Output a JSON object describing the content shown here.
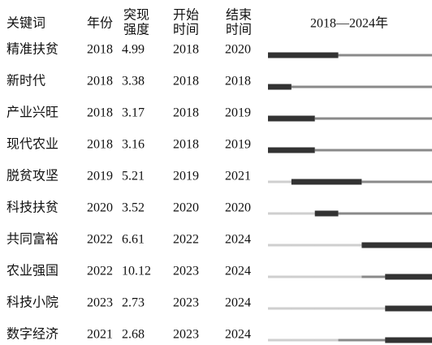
{
  "header": {
    "keyword": "关键词",
    "year": "年份",
    "strength": [
      "突现",
      "强度"
    ],
    "begin": [
      "开始",
      "时间"
    ],
    "end": [
      "结束",
      "时间"
    ],
    "timeline": "2018—2024年"
  },
  "rows": [
    {
      "keyword": "精准扶贫",
      "year": 2018,
      "strength": 4.99,
      "begin": 2018,
      "end": 2020
    },
    {
      "keyword": "新时代",
      "year": 2018,
      "strength": 3.38,
      "begin": 2018,
      "end": 2018
    },
    {
      "keyword": "产业兴旺",
      "year": 2018,
      "strength": 3.17,
      "begin": 2018,
      "end": 2019
    },
    {
      "keyword": "现代农业",
      "year": 2018,
      "strength": 3.16,
      "begin": 2018,
      "end": 2019
    },
    {
      "keyword": "脱贫攻坚",
      "year": 2019,
      "strength": 5.21,
      "begin": 2019,
      "end": 2021
    },
    {
      "keyword": "科技扶贫",
      "year": 2020,
      "strength": 3.52,
      "begin": 2020,
      "end": 2020
    },
    {
      "keyword": "共同富裕",
      "year": 2022,
      "strength": 6.61,
      "begin": 2022,
      "end": 2024
    },
    {
      "keyword": "农业强国",
      "year": 2022,
      "strength": 10.12,
      "begin": 2023,
      "end": 2024
    },
    {
      "keyword": "科技小院",
      "year": 2023,
      "strength": 2.73,
      "begin": 2023,
      "end": 2024
    },
    {
      "keyword": "数字经济",
      "year": 2021,
      "strength": 2.68,
      "begin": 2023,
      "end": 2024
    }
  ]
}
